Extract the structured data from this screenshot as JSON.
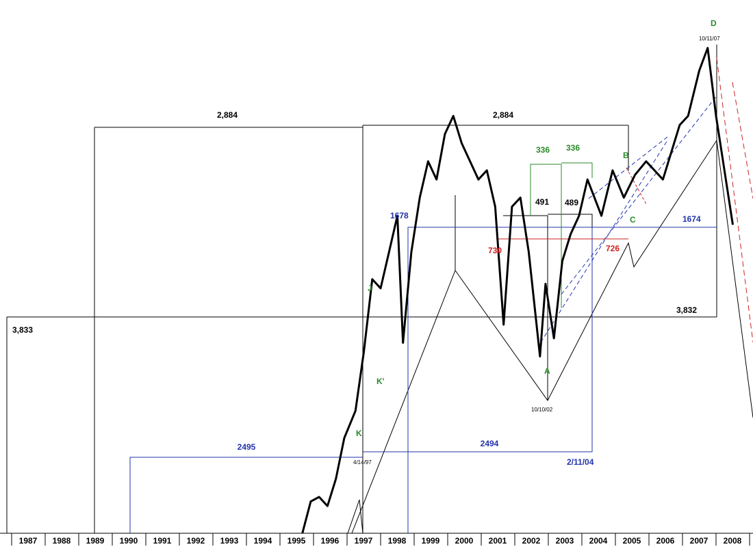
{
  "chart_data": {
    "type": "line",
    "title": "",
    "xlabel": "",
    "ylabel": "",
    "grid": false,
    "x_tick_labels": [
      "1987",
      "1988",
      "1989",
      "1990",
      "1991",
      "1992",
      "1993",
      "1994",
      "1995",
      "1996",
      "1997",
      "1998",
      "1999",
      "2000",
      "2001",
      "2002",
      "2003",
      "2004",
      "2005",
      "2006",
      "2007",
      "2008"
    ],
    "series": [
      {
        "values_by_date": [
          [
            "1995-09",
            0.0
          ],
          [
            "1995-12",
            0.07
          ],
          [
            "1996-03",
            0.08
          ],
          [
            "1996-06",
            0.06
          ],
          [
            "1996-09",
            0.12
          ],
          [
            "1996-12",
            0.21
          ],
          [
            "1997-04",
            0.27
          ],
          [
            "1997-07",
            0.4
          ],
          [
            "1997-10",
            0.56
          ],
          [
            "1998-01",
            0.54
          ],
          [
            "1998-04",
            0.62
          ],
          [
            "1998-07",
            0.7
          ],
          [
            "1998-09",
            0.42
          ],
          [
            "1998-12",
            0.62
          ],
          [
            "1999-03",
            0.74
          ],
          [
            "1999-06",
            0.82
          ],
          [
            "1999-09",
            0.78
          ],
          [
            "1999-12",
            0.88
          ],
          [
            "2000-03",
            0.92
          ],
          [
            "2000-06",
            0.86
          ],
          [
            "2000-09",
            0.82
          ],
          [
            "2000-12",
            0.78
          ],
          [
            "2001-03",
            0.8
          ],
          [
            "2001-06",
            0.72
          ],
          [
            "2001-09",
            0.46
          ],
          [
            "2001-12",
            0.72
          ],
          [
            "2002-03",
            0.74
          ],
          [
            "2002-06",
            0.62
          ],
          [
            "2002-10",
            0.39
          ],
          [
            "2002-12",
            0.55
          ],
          [
            "2003-03",
            0.43
          ],
          [
            "2003-06",
            0.6
          ],
          [
            "2003-09",
            0.66
          ],
          [
            "2003-12",
            0.7
          ],
          [
            "2004-03",
            0.78
          ],
          [
            "2004-08",
            0.7
          ],
          [
            "2004-12",
            0.8
          ],
          [
            "2005-04",
            0.74
          ],
          [
            "2005-08",
            0.79
          ],
          [
            "2005-12",
            0.82
          ],
          [
            "2006-06",
            0.78
          ],
          [
            "2006-12",
            0.9
          ],
          [
            "2007-03",
            0.92
          ],
          [
            "2007-07",
            1.02
          ],
          [
            "2007-10",
            1.07
          ],
          [
            "2008-01",
            0.92
          ],
          [
            "2008-03",
            0.84
          ],
          [
            "2008-07",
            0.68
          ]
        ]
      }
    ],
    "annotations": {
      "black_numbers": [
        "2,884",
        "2,884",
        "3,833",
        "3,832",
        "491",
        "489"
      ],
      "blue_numbers": [
        "1678",
        "1674",
        "2495",
        "2494",
        "2/11/04"
      ],
      "green_numbers": [
        "336",
        "336"
      ],
      "red_numbers": [
        "730",
        "726"
      ],
      "green_letters": [
        "J",
        "K'",
        "K",
        "A",
        "B",
        "C",
        "D"
      ],
      "dates": [
        "10/11/07",
        "10/10/02",
        "4/14/97"
      ]
    }
  }
}
